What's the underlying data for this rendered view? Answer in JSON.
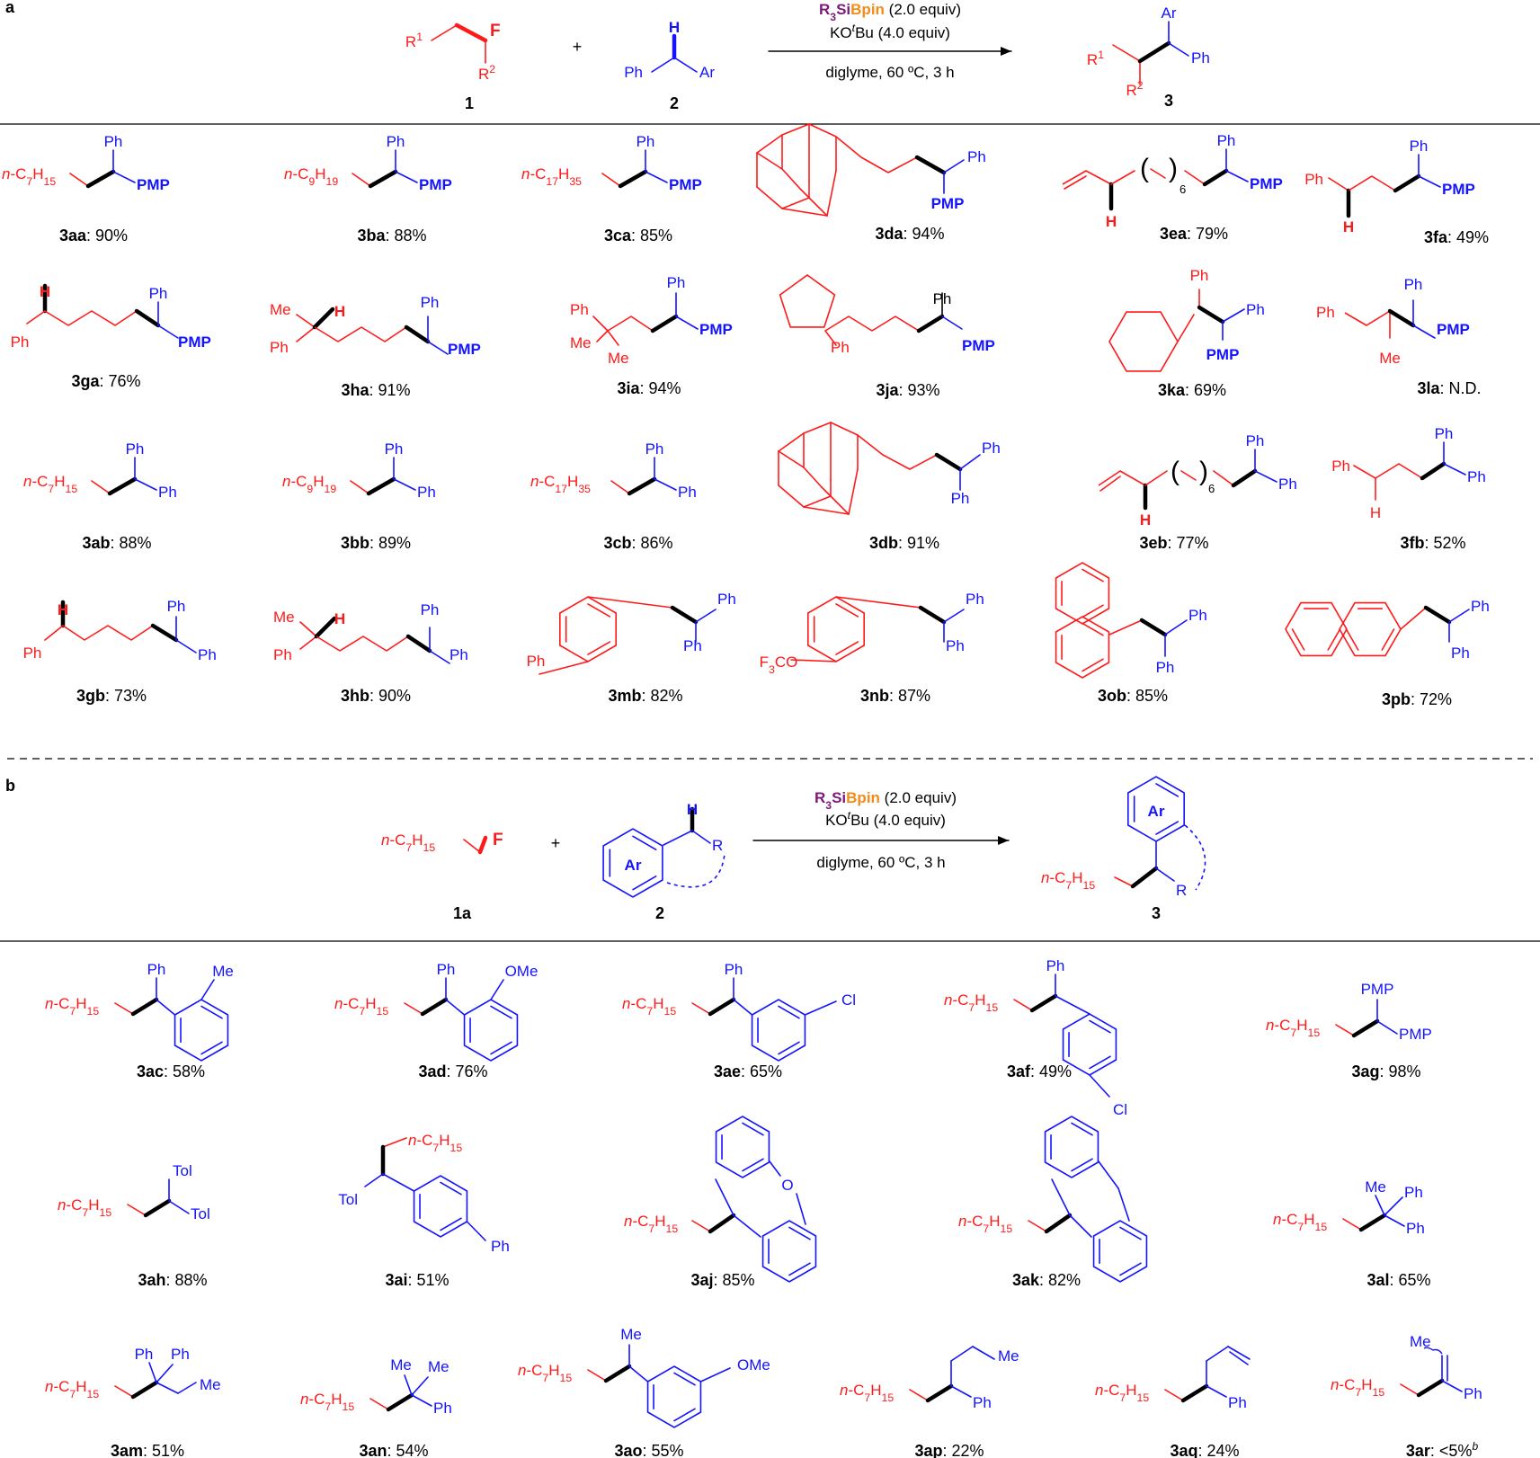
{
  "panels": {
    "a": {
      "letter": "a",
      "reagent_line1_a": "R",
      "reagent_line1_sub": "3",
      "reagent_line1_b": "Si",
      "reagent_line1_c": "Bpin",
      "reagent_line1_d": " (2.0 equiv)",
      "reagent_line2_a": "KO",
      "reagent_line2_sup": "t",
      "reagent_line2_b": "Bu (4.0 equiv)",
      "conditions": "diglyme, 60 ºC, 3 h",
      "plus": "+",
      "reactant1_label": "1",
      "reactant2_label": "2",
      "product_label": "3",
      "reactant1_groups": {
        "r1": "R",
        "r1_sup": "1",
        "r2": "R",
        "r2_sup": "2",
        "f": "F"
      },
      "reactant2_groups": {
        "h": "H",
        "ph": "Ph",
        "ar": "Ar"
      },
      "product_groups": {
        "ar": "Ar",
        "ph": "Ph",
        "r1": "R",
        "r1_sup": "1",
        "r2": "R",
        "r2_sup": "2"
      }
    },
    "b": {
      "letter": "b",
      "reagent_line1_a": "R",
      "reagent_line1_sub": "3",
      "reagent_line1_b": "Si",
      "reagent_line1_c": "Bpin",
      "reagent_line1_d": " (2.0 equiv)",
      "reagent_line2_a": "KO",
      "reagent_line2_sup": "t",
      "reagent_line2_b": "Bu (4.0 equiv)",
      "conditions": "diglyme, 60 ºC, 3 h",
      "plus": "+",
      "reactant1_label": "1a",
      "reactant2_label": "2",
      "product_label": "3",
      "reactant1_groups": {
        "chain": "n-C7H15",
        "f": "F"
      },
      "reactant2_groups": {
        "h": "H",
        "ar": "Ar",
        "r": "R"
      },
      "product_groups": {
        "ar": "Ar",
        "chain": "n-C7H15",
        "r": "R"
      }
    }
  },
  "products_a": [
    {
      "id": "3aa",
      "yield": ": 90%"
    },
    {
      "id": "3ba",
      "yield": ": 88%"
    },
    {
      "id": "3ca",
      "yield": ": 85%"
    },
    {
      "id": "3da",
      "yield": ": 94%"
    },
    {
      "id": "3ea",
      "yield": ": 79%"
    },
    {
      "id": "3fa",
      "yield": ": 49%"
    },
    {
      "id": "3ga",
      "yield": ": 76%"
    },
    {
      "id": "3ha",
      "yield": ": 91%"
    },
    {
      "id": "3ia",
      "yield": ": 94%"
    },
    {
      "id": "3ja",
      "yield": ": 93%"
    },
    {
      "id": "3ka",
      "yield": ": 69%"
    },
    {
      "id": "3la",
      "yield": ": N.D."
    },
    {
      "id": "3ab",
      "yield": ": 88%"
    },
    {
      "id": "3bb",
      "yield": ": 89%"
    },
    {
      "id": "3cb",
      "yield": ": 86%"
    },
    {
      "id": "3db",
      "yield": ": 91%"
    },
    {
      "id": "3eb",
      "yield": ": 77%"
    },
    {
      "id": "3fb",
      "yield": ": 52%"
    },
    {
      "id": "3gb",
      "yield": ": 73%"
    },
    {
      "id": "3hb",
      "yield": ": 90%"
    },
    {
      "id": "3mb",
      "yield": ": 82%"
    },
    {
      "id": "3nb",
      "yield": ": 87%"
    },
    {
      "id": "3ob",
      "yield": ": 85%"
    },
    {
      "id": "3pb",
      "yield": ": 72%"
    }
  ],
  "products_b": [
    {
      "id": "3ac",
      "yield": ": 58%"
    },
    {
      "id": "3ad",
      "yield": ": 76%"
    },
    {
      "id": "3ae",
      "yield": ": 65%"
    },
    {
      "id": "3af",
      "yield": ": 49%"
    },
    {
      "id": "3ag",
      "yield": ": 98%"
    },
    {
      "id": "3ah",
      "yield": ": 88%"
    },
    {
      "id": "3ai",
      "yield": ": 51%"
    },
    {
      "id": "3aj",
      "yield": ": 85%"
    },
    {
      "id": "3ak",
      "yield": ": 82%"
    },
    {
      "id": "3al",
      "yield": ": 65%"
    },
    {
      "id": "3am",
      "yield": ": 51%"
    },
    {
      "id": "3an",
      "yield": ": 54%"
    },
    {
      "id": "3ao",
      "yield": ": 55%"
    },
    {
      "id": "3ap",
      "yield": ": 22%"
    },
    {
      "id": "3aq",
      "yield": ": 24%"
    },
    {
      "id": "3ar",
      "yield": ": <5%",
      "note": "b"
    }
  ],
  "groups": {
    "ph": "Ph",
    "pmp": "PMP",
    "me": "Me",
    "h": "H",
    "tol": "Tol",
    "ome": "OMe",
    "cl": "Cl",
    "o": "O",
    "f3co": "F3CO",
    "six": "6",
    "c7": "n-C7H15",
    "c9": "n-C9H19",
    "c17": "n-C17H35"
  }
}
